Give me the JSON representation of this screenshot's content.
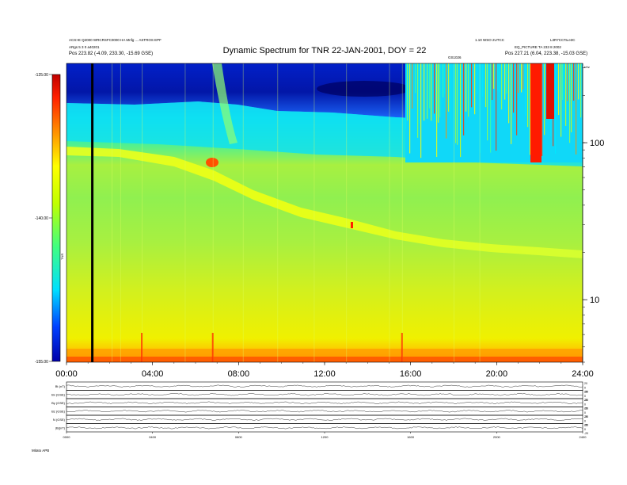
{
  "header": {
    "title": "Dynamic Spectrum for TNR 22-JAN-2001, DOY = 22",
    "left_line1": "ACS>E Q2000 WRCRSFC0000 HA Mnfg ... ASTROS EPF",
    "left_line2": "ARgs 5 3 0 a40201",
    "left_pos_label": "Pos",
    "left_pos_value": "223.82 (-4.09, 233.30, -15.69 GSE)",
    "right_line1": "1.10 WSO 2UTCC",
    "right_line2": "EQ_PICTURE TA 233 8 2002",
    "right_code": "L3R7CCTa.e3C",
    "right_pos_label": "Pos",
    "right_pos_value": "227.21 (6.04, 223.38, -15.03 GSE)",
    "center_tag": "GS1026"
  },
  "colorbar": {
    "label": "TNR",
    "ticks": [
      {
        "value": -125,
        "label": "-125.00"
      },
      {
        "value": -140,
        "label": "-140.00"
      },
      {
        "value": -155,
        "label": "-155.00"
      }
    ],
    "range": [
      -155,
      -125
    ],
    "colors": [
      "#0000aa",
      "#0040ff",
      "#00c8ff",
      "#40ff80",
      "#c0ff00",
      "#ffff00",
      "#ff9000",
      "#ff2000",
      "#c00000"
    ]
  },
  "chart_data": [
    {
      "type": "heatmap",
      "title": "Dynamic Spectrum for TNR 22-JAN-2001, DOY = 22",
      "x_range_hours": [
        0,
        24
      ],
      "x_ticks": [
        "00:00",
        "04:00",
        "08:00",
        "12:00",
        "16:00",
        "20:00",
        "24:00"
      ],
      "y_scale": "log",
      "y_unit": "kHz",
      "y_range": [
        4,
        320
      ],
      "y_ticks": [
        {
          "value": 10,
          "label": "10"
        },
        {
          "value": 100,
          "label": "100"
        }
      ],
      "z_range": [
        -155,
        -125
      ],
      "data_gap_line_hour": 1.2
    },
    {
      "type": "line",
      "panels": [
        {
          "label": "Bt (nT)",
          "right_ticks": [
            "20",
            "0",
            "-20"
          ]
        },
        {
          "label": "Bx (GSE)",
          "right_ticks": [
            "20",
            "0",
            "-20"
          ]
        },
        {
          "label": "By (GSE)",
          "right_ticks": [
            "20",
            "0",
            "-20"
          ]
        },
        {
          "label": "Bz (GSE)",
          "right_ticks": [
            "20",
            "0",
            "-20"
          ]
        },
        {
          "label": "N (GSE)",
          "right_ticks": [
            "20",
            "0",
            "-20"
          ]
        },
        {
          "label": "|B|(nT)",
          "right_ticks": [
            "20",
            "0",
            "-20"
          ]
        }
      ],
      "x_ticks": [
        "0000",
        "0400",
        "0800",
        "1200",
        "1600",
        "2000",
        "2400"
      ],
      "footer": "Mitato  APB"
    }
  ]
}
